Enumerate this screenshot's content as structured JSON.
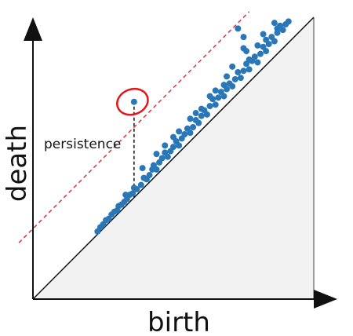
{
  "chart_data": {
    "type": "scatter",
    "title": "",
    "xlabel": "birth",
    "ylabel": "death",
    "xlim": [
      0,
      10
    ],
    "ylim": [
      0,
      10
    ],
    "grid": false,
    "axes_ticks": false,
    "diagonal": "y=x",
    "below_diagonal_fill": "#f2f2f2",
    "colors": {
      "points": "#2a77b8",
      "threshold_line": "#d9363e",
      "highlight_ring": "#e8141b",
      "axes": "#111111"
    },
    "threshold_line": {
      "type": "dashed",
      "intercept": 2.5,
      "slope": 1
    },
    "highlight_point": {
      "x": 3.6,
      "y": 7.0
    },
    "persistence_annotation": {
      "text": "persistence",
      "x": 3.6,
      "y_from": 3.6,
      "y_to": 7.0
    },
    "points": [
      {
        "x": 2.3,
        "y": 2.4
      },
      {
        "x": 2.4,
        "y": 2.55
      },
      {
        "x": 2.5,
        "y": 2.65
      },
      {
        "x": 2.6,
        "y": 2.8
      },
      {
        "x": 2.7,
        "y": 2.85
      },
      {
        "x": 2.8,
        "y": 3.0
      },
      {
        "x": 2.9,
        "y": 3.1
      },
      {
        "x": 3.0,
        "y": 3.15
      },
      {
        "x": 3.05,
        "y": 3.3
      },
      {
        "x": 3.15,
        "y": 3.35
      },
      {
        "x": 3.25,
        "y": 3.45
      },
      {
        "x": 3.35,
        "y": 3.55
      },
      {
        "x": 3.45,
        "y": 3.7
      },
      {
        "x": 3.55,
        "y": 3.75
      },
      {
        "x": 3.6,
        "y": 3.95
      },
      {
        "x": 3.7,
        "y": 3.9
      },
      {
        "x": 3.85,
        "y": 4.05
      },
      {
        "x": 3.95,
        "y": 4.3
      },
      {
        "x": 4.05,
        "y": 4.25
      },
      {
        "x": 4.15,
        "y": 4.4
      },
      {
        "x": 4.25,
        "y": 4.6
      },
      {
        "x": 4.3,
        "y": 4.75
      },
      {
        "x": 4.4,
        "y": 4.6
      },
      {
        "x": 4.5,
        "y": 4.85
      },
      {
        "x": 4.6,
        "y": 5.0
      },
      {
        "x": 4.7,
        "y": 5.2
      },
      {
        "x": 4.8,
        "y": 5.05
      },
      {
        "x": 4.9,
        "y": 5.25
      },
      {
        "x": 5.0,
        "y": 5.4
      },
      {
        "x": 5.1,
        "y": 5.6
      },
      {
        "x": 5.2,
        "y": 5.45
      },
      {
        "x": 5.3,
        "y": 5.7
      },
      {
        "x": 5.4,
        "y": 5.85
      },
      {
        "x": 5.5,
        "y": 6.05
      },
      {
        "x": 5.6,
        "y": 5.9
      },
      {
        "x": 5.7,
        "y": 6.1
      },
      {
        "x": 5.8,
        "y": 6.35
      },
      {
        "x": 5.9,
        "y": 6.25
      },
      {
        "x": 6.0,
        "y": 6.5
      },
      {
        "x": 6.1,
        "y": 6.7
      },
      {
        "x": 6.2,
        "y": 6.55
      },
      {
        "x": 6.3,
        "y": 6.85
      },
      {
        "x": 6.4,
        "y": 7.1
      },
      {
        "x": 6.5,
        "y": 6.9
      },
      {
        "x": 6.6,
        "y": 7.15
      },
      {
        "x": 6.7,
        "y": 7.35
      },
      {
        "x": 6.8,
        "y": 7.2
      },
      {
        "x": 6.9,
        "y": 7.45
      },
      {
        "x": 7.0,
        "y": 7.65
      },
      {
        "x": 7.1,
        "y": 7.55
      },
      {
        "x": 7.2,
        "y": 7.8
      },
      {
        "x": 7.3,
        "y": 8.05
      },
      {
        "x": 7.4,
        "y": 7.85
      },
      {
        "x": 7.5,
        "y": 8.1
      },
      {
        "x": 7.6,
        "y": 8.35
      },
      {
        "x": 7.7,
        "y": 8.15
      },
      {
        "x": 7.8,
        "y": 8.45
      },
      {
        "x": 7.9,
        "y": 8.6
      },
      {
        "x": 8.0,
        "y": 8.4
      },
      {
        "x": 8.1,
        "y": 8.7
      },
      {
        "x": 8.2,
        "y": 8.95
      },
      {
        "x": 8.3,
        "y": 8.8
      },
      {
        "x": 8.4,
        "y": 9.05
      },
      {
        "x": 8.5,
        "y": 9.3
      },
      {
        "x": 8.6,
        "y": 9.15
      },
      {
        "x": 8.7,
        "y": 9.45
      },
      {
        "x": 8.8,
        "y": 9.7
      },
      {
        "x": 8.9,
        "y": 9.55
      },
      {
        "x": 9.0,
        "y": 9.75
      },
      {
        "x": 9.1,
        "y": 9.85
      },
      {
        "x": 4.4,
        "y": 5.15
      },
      {
        "x": 5.0,
        "y": 5.75
      },
      {
        "x": 5.6,
        "y": 6.4
      },
      {
        "x": 6.3,
        "y": 7.2
      },
      {
        "x": 6.8,
        "y": 7.6
      },
      {
        "x": 7.6,
        "y": 8.8
      },
      {
        "x": 8.2,
        "y": 9.4
      },
      {
        "x": 3.9,
        "y": 4.65
      },
      {
        "x": 7.5,
        "y": 9.3
      },
      {
        "x": 7.5,
        "y": 8.9
      },
      {
        "x": 8.6,
        "y": 9.8
      },
      {
        "x": 7.7,
        "y": 8.5
      },
      {
        "x": 6.9,
        "y": 7.9
      },
      {
        "x": 6.0,
        "y": 6.75
      },
      {
        "x": 5.2,
        "y": 5.95
      },
      {
        "x": 8.0,
        "y": 9.0
      },
      {
        "x": 4.7,
        "y": 5.45
      },
      {
        "x": 3.3,
        "y": 3.7
      },
      {
        "x": 6.5,
        "y": 7.4
      },
      {
        "x": 7.1,
        "y": 8.25
      },
      {
        "x": 8.7,
        "y": 9.6
      },
      {
        "x": 5.8,
        "y": 6.6
      },
      {
        "x": 8.3,
        "y": 9.2
      },
      {
        "x": 7.3,
        "y": 9.6
      },
      {
        "x": 3.6,
        "y": 7.0
      }
    ]
  }
}
